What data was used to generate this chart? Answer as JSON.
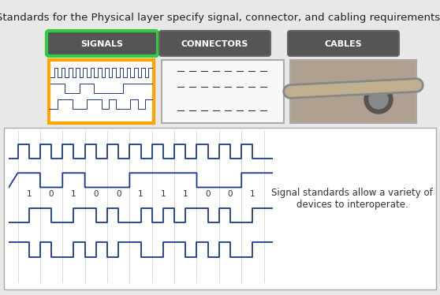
{
  "title": "Standards for the Physical layer specify signal, connector, and cabling requirements.",
  "title_fontsize": 9.5,
  "bg_color": "#e8e8e8",
  "panel_bg": "#ffffff",
  "signal_box_color": "#ffa500",
  "signals_btn_edge": "#2ecc40",
  "btn_face_color": "#555555",
  "btn_text_color": "#ffffff",
  "signal_line_color": "#1a3a8c",
  "grid_color": "#cccccc",
  "bits": [
    1,
    0,
    1,
    0,
    0,
    1,
    1,
    1,
    0,
    0,
    1
  ],
  "side_text_line1": "Signal standards allow a variety of",
  "side_text_line2": "devices to interoperate.",
  "side_text_fontsize": 8.5,
  "btn_labels": [
    "SIGNALS",
    "CONNECTORS",
    "CABLES"
  ]
}
